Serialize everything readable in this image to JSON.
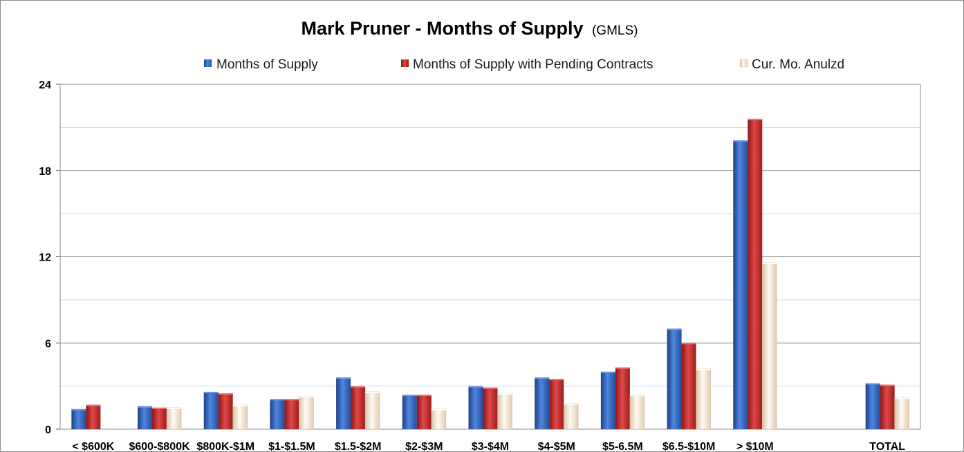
{
  "chart_data": {
    "type": "bar",
    "title": "Mark Pruner - Months of Supply",
    "subtitle": "(GMLS)",
    "legend_position": "top",
    "grid": true,
    "ylim": [
      0,
      24
    ],
    "yticks": [
      0,
      6,
      12,
      18,
      24
    ],
    "categories": [
      "< $600K",
      "$600-$800K",
      "$800K-$1M",
      "$1-$1.5M",
      "$1.5-$2M",
      "$2-$3M",
      "$3-$4M",
      "$4-$5M",
      "$5-6.5M",
      "$6.5-$10M",
      "> $10M",
      "",
      "TOTAL"
    ],
    "series": [
      {
        "name": "Months of Supply",
        "color": "#2f62c3",
        "values": [
          1.4,
          1.6,
          2.6,
          2.1,
          3.6,
          2.4,
          3.0,
          3.6,
          4.0,
          7.0,
          20.1,
          null,
          3.2
        ]
      },
      {
        "name": "Months of Supply with Pending Contracts",
        "color": "#c42828",
        "values": [
          1.7,
          1.5,
          2.5,
          2.1,
          3.0,
          2.4,
          2.9,
          3.5,
          4.3,
          6.0,
          21.6,
          null,
          3.1
        ]
      },
      {
        "name": "Cur. Mo. Anulzd",
        "color": "#f3e4d4",
        "values": [
          0,
          1.5,
          1.7,
          2.3,
          2.6,
          1.4,
          2.5,
          1.8,
          2.4,
          4.2,
          11.6,
          null,
          2.2
        ]
      }
    ]
  }
}
